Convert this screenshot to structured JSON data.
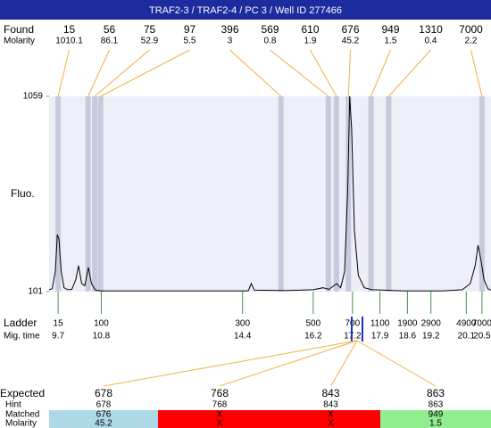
{
  "chart_data": {
    "type": "electropherogram",
    "title": "TRAF2-3 / TRAF2-4 / PC 3 / Well ID 277466",
    "found_label": "Found",
    "molarity_label": "Molarity",
    "found": [
      15,
      56,
      75,
      97,
      396,
      569,
      610,
      676,
      949,
      1310,
      7000
    ],
    "found_molarity": [
      1010.1,
      86.1,
      52.9,
      5.5,
      3,
      0.8,
      1.9,
      45.2,
      1.5,
      0.4,
      2.2
    ],
    "ylabel": "Fluo.",
    "ylim": [
      101,
      1059
    ],
    "yticks": [
      101,
      1059
    ],
    "xlim": [
      9.47,
      20.73
    ],
    "x": [
      9.47,
      9.55,
      9.63,
      9.68,
      9.72,
      9.78,
      9.85,
      9.95,
      10.05,
      10.15,
      10.22,
      10.3,
      10.38,
      10.47,
      10.55,
      10.65,
      10.8,
      14.5,
      14.55,
      14.62,
      14.7,
      15.5,
      16.2,
      16.45,
      16.6,
      16.8,
      16.9,
      17.0,
      17.08,
      17.13,
      17.18,
      17.25,
      17.35,
      17.5,
      17.7,
      18.5,
      19.5,
      20.0,
      20.2,
      20.33,
      20.4,
      20.48,
      20.55,
      20.65,
      20.73
    ],
    "values": [
      110,
      115,
      200,
      380,
      360,
      200,
      120,
      110,
      112,
      160,
      228,
      140,
      130,
      220,
      140,
      108,
      104,
      104,
      106,
      141,
      108,
      106,
      110,
      120,
      112,
      140,
      120,
      200,
      600,
      1059,
      900,
      400,
      180,
      120,
      110,
      104,
      104,
      110,
      140,
      230,
      328,
      250,
      160,
      115,
      108
    ],
    "color": "#000000",
    "band_color": "#c9c9dc",
    "background": "#eeeef8",
    "ladder_label": "Ladder",
    "mig_label": "Mig. time",
    "ladder": [
      15,
      100,
      300,
      500,
      700,
      1100,
      1900,
      2900,
      4900,
      7000
    ],
    "ladder_mig": [
      9.7,
      10.8,
      14.4,
      16.2,
      17.2,
      17.9,
      18.6,
      19.2,
      20.1,
      20.5
    ],
    "expected": {
      "label": "Expected",
      "values": [
        678,
        768,
        843,
        863
      ],
      "hint_label": "Hint",
      "hint": [
        678,
        768,
        843,
        863
      ],
      "matched_label": "Matched",
      "matched": [
        676,
        "X",
        "X",
        949
      ],
      "molarity_label": "Molarity",
      "molarity": [
        45.2,
        "X",
        "X",
        1.5
      ],
      "colors": [
        "#add8e6",
        "#ff0000",
        "#ff0000",
        "#90ee90"
      ]
    }
  }
}
